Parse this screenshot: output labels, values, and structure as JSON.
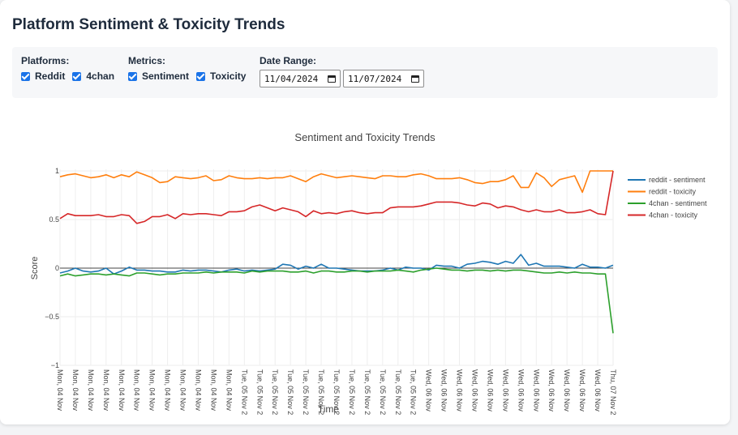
{
  "page": {
    "title": "Platform Sentiment & Toxicity Trends"
  },
  "controls": {
    "platforms": {
      "label": "Platforms:",
      "options": [
        {
          "label": "Reddit",
          "checked": true
        },
        {
          "label": "4chan",
          "checked": true
        }
      ]
    },
    "metrics": {
      "label": "Metrics:",
      "options": [
        {
          "label": "Sentiment",
          "checked": true
        },
        {
          "label": "Toxicity",
          "checked": true
        }
      ]
    },
    "date_range": {
      "label": "Date Range:",
      "start": "11/04/2024",
      "end": "11/07/2024"
    },
    "checkbox_color": "#1a73e8"
  },
  "chart_data": {
    "type": "line",
    "title": "Sentiment and Toxicity Trends",
    "xlabel": "Time",
    "ylabel": "Score",
    "ylim": [
      -1,
      1
    ],
    "yticks": [
      1,
      0.5,
      0,
      -0.5,
      -1
    ],
    "ytick_labels": [
      "1",
      "0.5",
      "0",
      "−0.5",
      "−1"
    ],
    "grid": true,
    "legend_position": "right",
    "x_tick_labels": [
      "Mon, 04 Nov",
      "Mon, 04 Nov",
      "Mon, 04 Nov",
      "Mon, 04 Nov",
      "Mon, 04 Nov",
      "Mon, 04 Nov",
      "Mon, 04 Nov",
      "Mon, 04 Nov",
      "Mon, 04 Nov",
      "Mon, 04 Nov",
      "Mon, 04 Nov",
      "Mon, 04 Nov",
      "Tue, 05 Nov 2",
      "Tue, 05 Nov 2",
      "Tue, 05 Nov 2",
      "Tue, 05 Nov 2",
      "Tue, 05 Nov 2",
      "Tue, 05 Nov 2",
      "Tue, 05 Nov 2",
      "Tue, 05 Nov 2",
      "Tue, 05 Nov 2",
      "Tue, 05 Nov 2",
      "Tue, 05 Nov 2",
      "Tue, 05 Nov 2",
      "Wed, 06 Nov",
      "Wed, 06 Nov",
      "Wed, 06 Nov",
      "Wed, 06 Nov",
      "Wed, 06 Nov",
      "Wed, 06 Nov",
      "Wed, 06 Nov",
      "Wed, 06 Nov",
      "Wed, 06 Nov",
      "Wed, 06 Nov",
      "Wed, 06 Nov",
      "Wed, 06 Nov",
      "Thu, 07 Nov 2"
    ],
    "x_count": 73,
    "series": [
      {
        "name": "reddit - sentiment",
        "color": "#1f77b4",
        "values": [
          -0.05,
          -0.03,
          0.0,
          -0.03,
          -0.04,
          -0.03,
          0.0,
          -0.06,
          -0.03,
          0.01,
          -0.02,
          -0.02,
          -0.03,
          -0.03,
          -0.04,
          -0.04,
          -0.02,
          -0.03,
          -0.02,
          -0.02,
          -0.03,
          -0.04,
          -0.02,
          -0.01,
          -0.03,
          -0.02,
          -0.03,
          -0.02,
          -0.01,
          0.04,
          0.03,
          -0.01,
          0.02,
          0.0,
          0.04,
          0.0,
          0.0,
          -0.01,
          -0.02,
          -0.03,
          -0.03,
          -0.03,
          -0.02,
          0.0,
          -0.02,
          0.01,
          0.0,
          0.0,
          -0.02,
          0.03,
          0.02,
          0.02,
          0.0,
          0.04,
          0.05,
          0.07,
          0.06,
          0.04,
          0.07,
          0.05,
          0.14,
          0.03,
          0.05,
          0.02,
          0.02,
          0.02,
          0.01,
          0.0,
          0.04,
          0.01,
          0.01,
          0.0,
          0.03
        ]
      },
      {
        "name": "reddit - toxicity",
        "color": "#ff7f0e",
        "values": [
          0.94,
          0.96,
          0.97,
          0.95,
          0.93,
          0.94,
          0.96,
          0.93,
          0.96,
          0.94,
          0.99,
          0.96,
          0.93,
          0.88,
          0.89,
          0.94,
          0.93,
          0.92,
          0.93,
          0.95,
          0.9,
          0.91,
          0.95,
          0.93,
          0.92,
          0.92,
          0.93,
          0.92,
          0.93,
          0.93,
          0.95,
          0.92,
          0.89,
          0.94,
          0.97,
          0.95,
          0.93,
          0.94,
          0.95,
          0.94,
          0.93,
          0.92,
          0.95,
          0.95,
          0.94,
          0.94,
          0.96,
          0.97,
          0.95,
          0.92,
          0.92,
          0.92,
          0.93,
          0.91,
          0.88,
          0.87,
          0.89,
          0.89,
          0.91,
          0.95,
          0.83,
          0.83,
          0.98,
          0.93,
          0.84,
          0.91,
          0.93,
          0.95,
          0.78,
          1.0,
          1.0,
          1.0,
          1.0
        ]
      },
      {
        "name": "4chan - sentiment",
        "color": "#2ca02c",
        "values": [
          -0.08,
          -0.06,
          -0.08,
          -0.07,
          -0.06,
          -0.06,
          -0.07,
          -0.06,
          -0.07,
          -0.08,
          -0.05,
          -0.05,
          -0.06,
          -0.07,
          -0.06,
          -0.06,
          -0.05,
          -0.05,
          -0.05,
          -0.04,
          -0.05,
          -0.04,
          -0.04,
          -0.04,
          -0.05,
          -0.03,
          -0.04,
          -0.03,
          -0.03,
          -0.03,
          -0.04,
          -0.04,
          -0.03,
          -0.05,
          -0.03,
          -0.03,
          -0.04,
          -0.04,
          -0.03,
          -0.03,
          -0.04,
          -0.03,
          -0.03,
          -0.03,
          -0.02,
          -0.03,
          -0.04,
          -0.02,
          -0.01,
          0.0,
          -0.01,
          -0.02,
          -0.02,
          -0.03,
          -0.02,
          -0.02,
          -0.03,
          -0.02,
          -0.03,
          -0.02,
          -0.02,
          -0.03,
          -0.04,
          -0.05,
          -0.05,
          -0.04,
          -0.05,
          -0.04,
          -0.05,
          -0.05,
          -0.06,
          -0.06,
          -0.67
        ]
      },
      {
        "name": "4chan - toxicity",
        "color": "#d62728",
        "values": [
          0.51,
          0.56,
          0.54,
          0.54,
          0.54,
          0.55,
          0.53,
          0.53,
          0.55,
          0.54,
          0.46,
          0.48,
          0.53,
          0.53,
          0.55,
          0.51,
          0.56,
          0.55,
          0.56,
          0.56,
          0.55,
          0.54,
          0.58,
          0.58,
          0.59,
          0.63,
          0.65,
          0.62,
          0.59,
          0.62,
          0.6,
          0.58,
          0.53,
          0.59,
          0.56,
          0.57,
          0.56,
          0.58,
          0.59,
          0.57,
          0.56,
          0.57,
          0.57,
          0.62,
          0.63,
          0.63,
          0.63,
          0.64,
          0.66,
          0.68,
          0.68,
          0.68,
          0.67,
          0.65,
          0.64,
          0.67,
          0.66,
          0.62,
          0.64,
          0.63,
          0.6,
          0.58,
          0.6,
          0.58,
          0.58,
          0.6,
          0.57,
          0.57,
          0.58,
          0.6,
          0.56,
          0.55,
          1.0
        ]
      }
    ]
  }
}
